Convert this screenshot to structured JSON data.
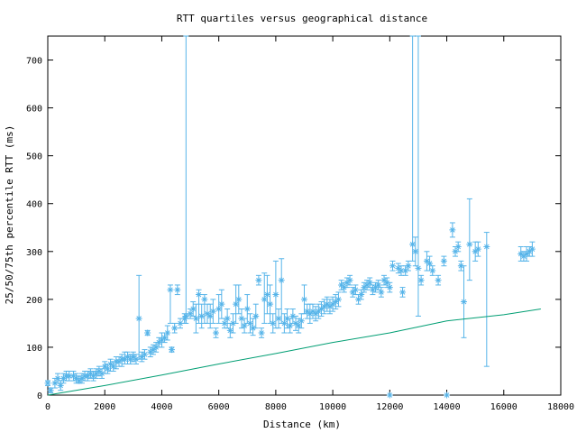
{
  "chart_data": {
    "type": "scatter",
    "title": "RTT quartiles versus geographical distance",
    "xlabel": "Distance (km)",
    "ylabel": "25/50/75th percentile RTT (ms)",
    "xlim": [
      0,
      18000
    ],
    "ylim": [
      0,
      750
    ],
    "xticks": [
      0,
      2000,
      4000,
      6000,
      8000,
      10000,
      12000,
      14000,
      16000,
      18000
    ],
    "yticks": [
      0,
      100,
      200,
      300,
      400,
      500,
      600,
      700
    ],
    "grid": false,
    "colors": {
      "median": "#56b4e9",
      "baseline": "#009e73"
    },
    "series": [
      {
        "type": "errorbar",
        "marker": "asterisk",
        "points": [
          [
            0,
            25,
            20,
            30
          ],
          [
            100,
            10,
            5,
            15
          ],
          [
            250,
            25,
            15,
            35
          ],
          [
            350,
            35,
            25,
            45
          ],
          [
            450,
            20,
            10,
            30
          ],
          [
            550,
            35,
            25,
            45
          ],
          [
            650,
            40,
            30,
            50
          ],
          [
            750,
            40,
            30,
            50
          ],
          [
            900,
            40,
            30,
            50
          ],
          [
            1000,
            35,
            25,
            45
          ],
          [
            1100,
            30,
            25,
            40
          ],
          [
            1200,
            35,
            25,
            45
          ],
          [
            1300,
            40,
            30,
            50
          ],
          [
            1400,
            40,
            30,
            50
          ],
          [
            1500,
            45,
            35,
            55
          ],
          [
            1600,
            40,
            30,
            50
          ],
          [
            1700,
            45,
            35,
            55
          ],
          [
            1800,
            50,
            40,
            60
          ],
          [
            1900,
            45,
            35,
            55
          ],
          [
            2000,
            60,
            45,
            70
          ],
          [
            2100,
            55,
            45,
            65
          ],
          [
            2200,
            65,
            50,
            75
          ],
          [
            2300,
            60,
            50,
            70
          ],
          [
            2400,
            70,
            55,
            80
          ],
          [
            2500,
            70,
            60,
            80
          ],
          [
            2600,
            75,
            60,
            85
          ],
          [
            2700,
            75,
            65,
            90
          ],
          [
            2800,
            80,
            65,
            90
          ],
          [
            2900,
            75,
            65,
            85
          ],
          [
            3000,
            80,
            70,
            90
          ],
          [
            3100,
            75,
            65,
            85
          ],
          [
            3200,
            160,
            75,
            250
          ],
          [
            3300,
            80,
            70,
            90
          ],
          [
            3400,
            85,
            75,
            95
          ],
          [
            3500,
            130,
            125,
            135
          ],
          [
            3600,
            90,
            80,
            100
          ],
          [
            3700,
            95,
            85,
            105
          ],
          [
            3800,
            100,
            90,
            110
          ],
          [
            3900,
            110,
            100,
            120
          ],
          [
            4000,
            115,
            100,
            130
          ],
          [
            4100,
            120,
            110,
            130
          ],
          [
            4200,
            130,
            115,
            145
          ],
          [
            4300,
            220,
            150,
            230
          ],
          [
            4350,
            95,
            90,
            100
          ],
          [
            4450,
            140,
            130,
            150
          ],
          [
            4550,
            220,
            210,
            230
          ],
          [
            4650,
            150,
            140,
            160
          ],
          [
            4800,
            160,
            150,
            170
          ],
          [
            4850,
            165,
            150,
            750
          ],
          [
            5000,
            170,
            160,
            180
          ],
          [
            5100,
            180,
            165,
            195
          ],
          [
            5200,
            160,
            130,
            190
          ],
          [
            5300,
            210,
            150,
            220
          ],
          [
            5400,
            165,
            140,
            190
          ],
          [
            5500,
            200,
            150,
            210
          ],
          [
            5600,
            170,
            150,
            190
          ],
          [
            5700,
            165,
            140,
            190
          ],
          [
            5800,
            175,
            150,
            200
          ],
          [
            5900,
            130,
            120,
            140
          ],
          [
            6000,
            180,
            150,
            210
          ],
          [
            6100,
            190,
            160,
            220
          ],
          [
            6200,
            150,
            140,
            160
          ],
          [
            6300,
            160,
            140,
            180
          ],
          [
            6400,
            135,
            120,
            150
          ],
          [
            6500,
            150,
            130,
            170
          ],
          [
            6600,
            190,
            150,
            230
          ],
          [
            6700,
            200,
            170,
            230
          ],
          [
            6800,
            160,
            140,
            180
          ],
          [
            6900,
            145,
            130,
            160
          ],
          [
            7000,
            180,
            150,
            210
          ],
          [
            7100,
            150,
            130,
            170
          ],
          [
            7200,
            140,
            125,
            160
          ],
          [
            7300,
            165,
            140,
            190
          ],
          [
            7400,
            240,
            230,
            250
          ],
          [
            7500,
            130,
            120,
            140
          ],
          [
            7600,
            200,
            150,
            255
          ],
          [
            7700,
            210,
            170,
            250
          ],
          [
            7800,
            190,
            150,
            230
          ],
          [
            7900,
            150,
            130,
            170
          ],
          [
            8000,
            210,
            140,
            280
          ],
          [
            8100,
            160,
            140,
            180
          ],
          [
            8200,
            240,
            150,
            285
          ],
          [
            8300,
            150,
            130,
            170
          ],
          [
            8400,
            160,
            140,
            180
          ],
          [
            8500,
            145,
            130,
            160
          ],
          [
            8600,
            165,
            150,
            180
          ],
          [
            8700,
            150,
            135,
            165
          ],
          [
            8800,
            145,
            130,
            160
          ],
          [
            8900,
            155,
            140,
            170
          ],
          [
            9000,
            200,
            170,
            230
          ],
          [
            9100,
            175,
            160,
            190
          ],
          [
            9200,
            170,
            150,
            190
          ],
          [
            9300,
            175,
            160,
            190
          ],
          [
            9400,
            170,
            155,
            185
          ],
          [
            9500,
            175,
            160,
            190
          ],
          [
            9600,
            180,
            165,
            195
          ],
          [
            9700,
            185,
            170,
            200
          ],
          [
            9800,
            190,
            175,
            205
          ],
          [
            9900,
            185,
            170,
            200
          ],
          [
            10000,
            190,
            175,
            205
          ],
          [
            10100,
            195,
            180,
            210
          ],
          [
            10200,
            200,
            185,
            215
          ],
          [
            10300,
            230,
            220,
            240
          ],
          [
            10400,
            225,
            215,
            235
          ],
          [
            10500,
            235,
            225,
            245
          ],
          [
            10600,
            240,
            230,
            250
          ],
          [
            10700,
            215,
            205,
            225
          ],
          [
            10800,
            220,
            210,
            230
          ],
          [
            10900,
            200,
            190,
            210
          ],
          [
            11000,
            210,
            200,
            220
          ],
          [
            11100,
            225,
            215,
            235
          ],
          [
            11200,
            230,
            220,
            240
          ],
          [
            11300,
            235,
            225,
            245
          ],
          [
            11400,
            220,
            210,
            230
          ],
          [
            11500,
            225,
            215,
            235
          ],
          [
            11600,
            230,
            220,
            240
          ],
          [
            11700,
            215,
            205,
            225
          ],
          [
            11800,
            240,
            230,
            250
          ],
          [
            11900,
            235,
            225,
            245
          ],
          [
            12000,
            225,
            215,
            235
          ],
          [
            12100,
            270,
            260,
            280
          ],
          [
            12300,
            265,
            255,
            275
          ],
          [
            12400,
            260,
            250,
            270
          ],
          [
            12450,
            215,
            205,
            225
          ],
          [
            12550,
            260,
            250,
            270
          ],
          [
            12650,
            270,
            260,
            280
          ],
          [
            12800,
            315,
            280,
            750
          ],
          [
            12900,
            300,
            270,
            330
          ],
          [
            13000,
            265,
            165,
            750
          ],
          [
            13100,
            240,
            230,
            250
          ],
          [
            13300,
            280,
            260,
            300
          ],
          [
            13400,
            275,
            260,
            290
          ],
          [
            13500,
            260,
            250,
            270
          ],
          [
            13700,
            240,
            230,
            250
          ],
          [
            13900,
            280,
            270,
            290
          ],
          [
            14200,
            345,
            330,
            360
          ],
          [
            14300,
            300,
            290,
            310
          ],
          [
            14400,
            310,
            300,
            320
          ],
          [
            14500,
            270,
            260,
            280
          ],
          [
            14600,
            195,
            120,
            270
          ],
          [
            14800,
            315,
            240,
            410
          ],
          [
            15000,
            300,
            280,
            320
          ],
          [
            15100,
            305,
            290,
            320
          ],
          [
            15400,
            310,
            60,
            340
          ],
          [
            16600,
            295,
            280,
            310
          ],
          [
            16700,
            290,
            280,
            300
          ],
          [
            16800,
            295,
            280,
            310
          ],
          [
            16900,
            300,
            290,
            310
          ],
          [
            17000,
            305,
            290,
            320
          ]
        ],
        "zero_points": [
          12000,
          14000
        ]
      },
      {
        "type": "line",
        "x": [
          0,
          2000,
          4000,
          6000,
          8000,
          10000,
          12000,
          14000,
          16000,
          17300
        ],
        "y": [
          0,
          20,
          42,
          65,
          87,
          110,
          130,
          155,
          168,
          180
        ]
      }
    ]
  }
}
